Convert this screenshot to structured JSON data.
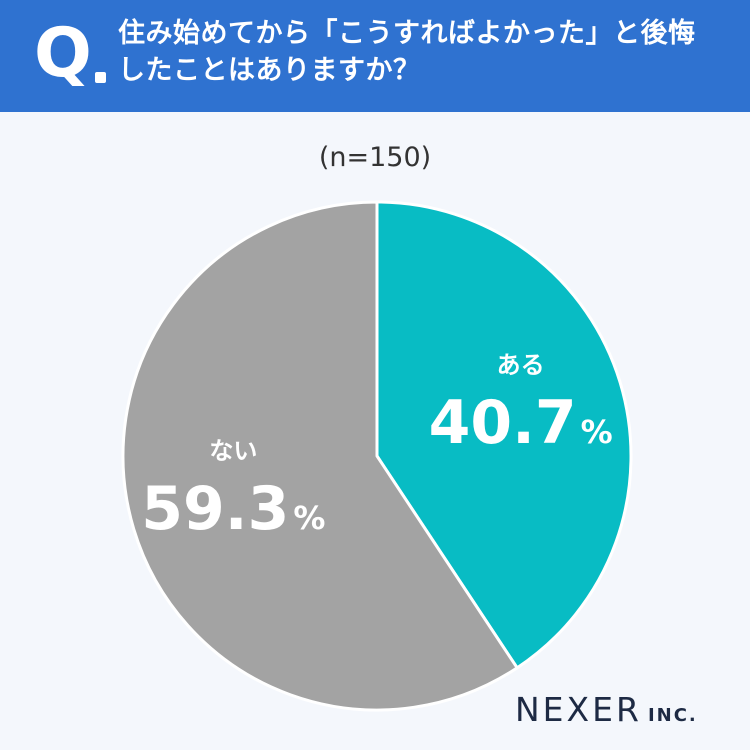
{
  "header": {
    "q_label": "Q",
    "question_line1": "住み始めてから「こうすればよかった」と後悔",
    "question_line2": "したことはありますか？"
  },
  "sample_size": "(n=150)",
  "brand": {
    "name": "NEXER",
    "suffix": "INC."
  },
  "colors": {
    "header_bg": "#2f72d0",
    "aru": "#08bcc4",
    "nai": "#a3a3a3",
    "background": "#f4f7fc"
  },
  "chart_data": {
    "type": "pie",
    "title": "住み始めてから「こうすればよかった」と後悔したことはありますか？",
    "subtitle": "(n=150)",
    "start": "12 o'clock",
    "direction": "clockwise",
    "unit": "%",
    "slices": [
      {
        "label": "ある",
        "value": 40.7,
        "value_text": "40.7",
        "color": "#08bcc4"
      },
      {
        "label": "ない",
        "value": 59.3,
        "value_text": "59.3",
        "color": "#a3a3a3"
      }
    ]
  }
}
